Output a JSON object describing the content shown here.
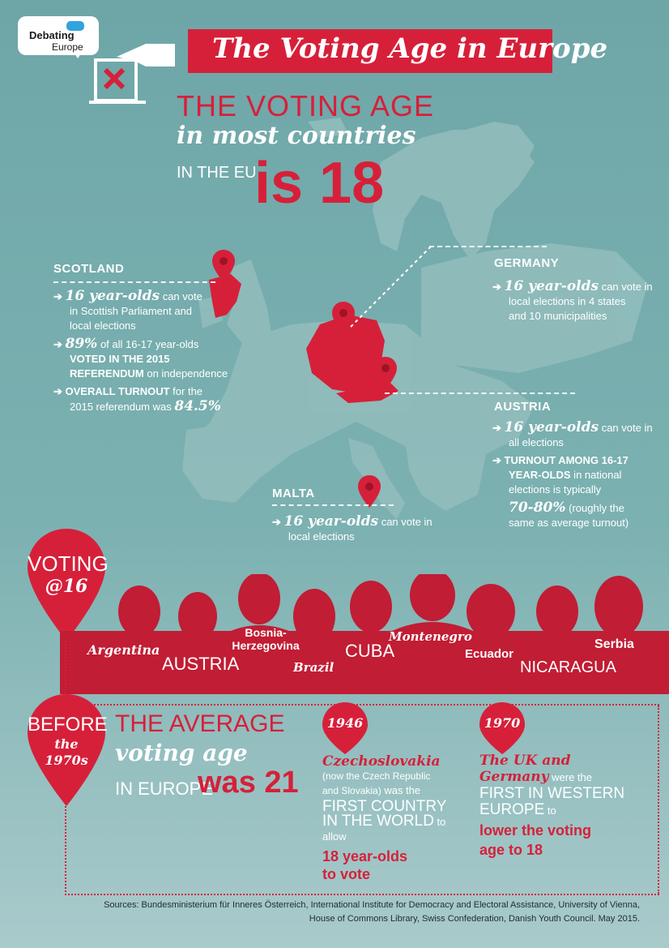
{
  "logo": {
    "line1": "Debating",
    "line2": "Europe"
  },
  "banner_title": "The Voting Age in Europe",
  "headline": {
    "line1": "THE VOTING AGE",
    "line2": "in most countries",
    "line3": "IN THE EU",
    "line4": "is 18"
  },
  "scotland": {
    "title": "SCOTLAND",
    "b1_big": "16 year-olds",
    "b1_rest1": " can vote",
    "b1_rest2": "in Scottish Parliament and",
    "b1_rest3": "local elections",
    "b2_big": "89%",
    "b2_rest1": " of all 16-17 year-olds",
    "b2_caps1": "VOTED IN THE 2015",
    "b2_caps2": "REFERENDUM",
    "b2_rest2": " on independence",
    "b3_caps": "OVERALL TURNOUT",
    "b3_rest1": " for the",
    "b3_rest2": "2015 referendum was ",
    "b3_big": "84.5%"
  },
  "germany": {
    "title": "GERMANY",
    "b1_big": "16 year-olds",
    "b1_rest1": " can vote in",
    "b1_rest2": "local elections in 4 states",
    "b1_rest3": "and 10 municipalities"
  },
  "austria": {
    "title": "AUSTRIA",
    "b1_big": "16 year-olds",
    "b1_rest1": " can vote in",
    "b1_rest2": "all elections",
    "b2_caps1": "TURNOUT AMONG 16-17",
    "b2_caps2": "YEAR-OLDS",
    "b2_rest1": " in national",
    "b2_rest2": "elections is typically",
    "b2_big": "70-80%",
    "b2_rest3": " (roughly the",
    "b2_rest4": "same as average turnout)"
  },
  "malta": {
    "title": "MALTA",
    "b1_big": "16 year-olds",
    "b1_rest1": " can vote in",
    "b1_rest2": "local elections"
  },
  "voting16": {
    "line1": "VOTING",
    "line2": "@16"
  },
  "countries": {
    "argentina": "Argentina",
    "austria": "AUSTRIA",
    "bosnia1": "Bosnia-",
    "bosnia2": "Herzegovina",
    "brazil": "Brazil",
    "cuba": "CUBA",
    "montenegro": "Montenegro",
    "ecuador": "Ecuador",
    "nicaragua": "NICARAGUA",
    "serbia": "Serbia"
  },
  "before": {
    "line1": "BEFORE",
    "line2": "the",
    "line3": "1970s"
  },
  "average": {
    "line1": "THE AVERAGE",
    "line2": "voting age",
    "line3": "IN EUROPE",
    "line4": "was 21"
  },
  "y1946": {
    "year": "1946",
    "country": "Czechoslovakia",
    "note1": "(now the Czech Republic",
    "note2": "and Slovakia)",
    "was": " was the",
    "caps1": "FIRST COUNTRY",
    "caps2": "IN THE WORLD",
    "toallow": " to allow",
    "red1": "18 year-olds",
    "red2": "to vote"
  },
  "y1970": {
    "year": "1970",
    "country1": "The UK and",
    "country2": "Germany",
    "werethe": " were the",
    "caps1": "FIRST IN WESTERN",
    "caps2": "EUROPE",
    "to": " to",
    "red1": "lower the voting",
    "red2": "age to 18"
  },
  "sources": {
    "line1": "Sources: Bundesministerium für Inneres Österreich, International Institute for Democracy and Electoral Assistance, University of Vienna,",
    "line2": "House of Commons Library, Swiss Confederation, Danish Youth Council. May 2015."
  },
  "colors": {
    "accent": "#d6203a",
    "background": "#7cb1b1",
    "map": "#93bdbd"
  },
  "icons": [
    "ballot-box-icon",
    "map-pin-icon",
    "speech-bubble-icon"
  ]
}
